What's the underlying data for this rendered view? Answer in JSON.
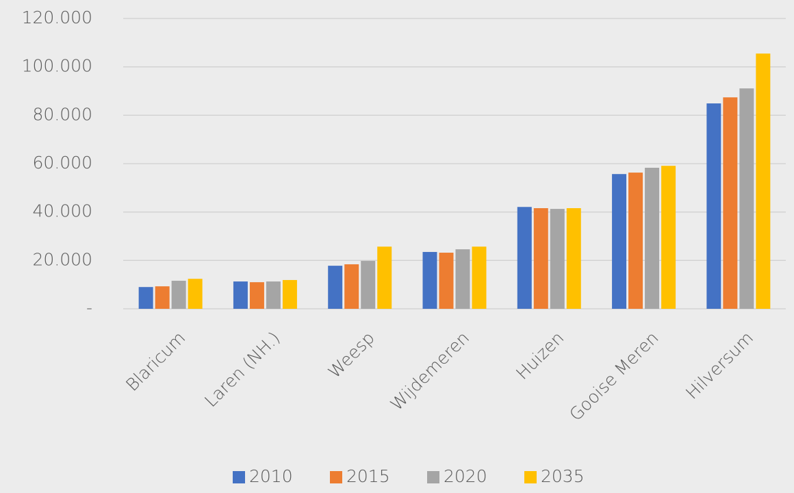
{
  "chart_data": {
    "type": "bar",
    "categories": [
      "Blaricum",
      "Laren (NH.)",
      "Weesp",
      "Wijdemeren",
      "Huizen",
      "Gooise Meren",
      "Hilversum"
    ],
    "series": [
      {
        "name": "2010",
        "color": "#4472c4",
        "values": [
          9000,
          11300,
          17800,
          23500,
          42100,
          55700,
          84900
        ]
      },
      {
        "name": "2015",
        "color": "#ed7d31",
        "values": [
          9300,
          11000,
          18400,
          23200,
          41600,
          56300,
          87400
        ]
      },
      {
        "name": "2020",
        "color": "#a5a5a5",
        "values": [
          11600,
          11300,
          19800,
          24600,
          41300,
          58300,
          91100
        ]
      },
      {
        "name": "2035",
        "color": "#ffc000",
        "values": [
          12400,
          11900,
          25700,
          25700,
          41600,
          59100,
          105500
        ]
      }
    ],
    "ylim": [
      0,
      120000
    ],
    "yticks": [
      {
        "value": 0,
        "label": "-"
      },
      {
        "value": 20000,
        "label": "20.000"
      },
      {
        "value": 40000,
        "label": "40.000"
      },
      {
        "value": 60000,
        "label": "60.000"
      },
      {
        "value": 80000,
        "label": "80.000"
      },
      {
        "value": 100000,
        "label": "100.000"
      },
      {
        "value": 120000,
        "label": "120.000"
      }
    ],
    "grid": true,
    "legend": "bottom"
  }
}
